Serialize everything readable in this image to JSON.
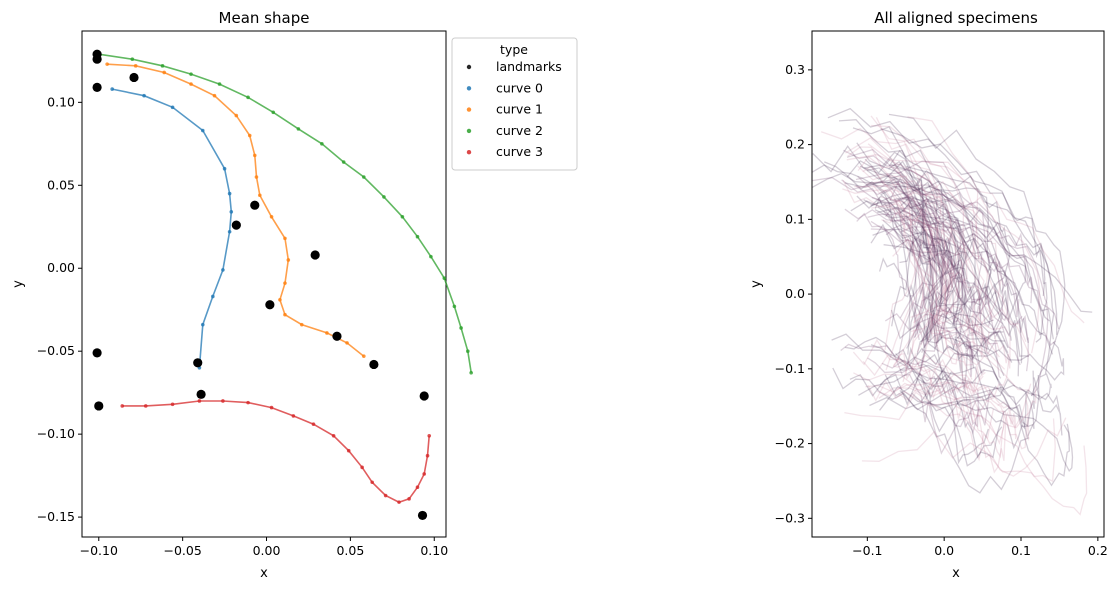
{
  "figure": {
    "left_title": "Mean shape",
    "right_title": "All aligned specimens"
  },
  "chart_data": [
    {
      "type": "line",
      "title": "Mean shape",
      "xlabel": "x",
      "ylabel": "y",
      "xlim": [
        -0.11,
        0.107
      ],
      "ylim": [
        -0.162,
        0.143
      ],
      "xticks": [
        -0.1,
        -0.05,
        0.0,
        0.05,
        0.1
      ],
      "xtick_labels": [
        "−0.10",
        "−0.05",
        "0.00",
        "0.05",
        "0.10"
      ],
      "yticks": [
        -0.15,
        -0.1,
        -0.05,
        0.0,
        0.05,
        0.1
      ],
      "ytick_labels": [
        "−0.15",
        "−0.10",
        "−0.05",
        "0.00",
        "0.05",
        "0.10"
      ],
      "grid": false,
      "legend": {
        "title": "type",
        "placement": "outside upper right",
        "entries": [
          "landmarks",
          "curve 0",
          "curve 1",
          "curve 2",
          "curve 3"
        ]
      },
      "series": [
        {
          "name": "curve 0",
          "color": "#1f77b4",
          "points": [
            [
              -0.092,
              0.108
            ],
            [
              -0.073,
              0.104
            ],
            [
              -0.056,
              0.097
            ],
            [
              -0.038,
              0.083
            ],
            [
              -0.025,
              0.06
            ],
            [
              -0.022,
              0.045
            ],
            [
              -0.021,
              0.034
            ],
            [
              -0.022,
              0.022
            ],
            [
              -0.026,
              -0.001
            ],
            [
              -0.032,
              -0.017
            ],
            [
              -0.038,
              -0.034
            ],
            [
              -0.04,
              -0.06
            ]
          ]
        },
        {
          "name": "curve 1",
          "color": "#ff7f0e",
          "points": [
            [
              -0.095,
              0.123
            ],
            [
              -0.078,
              0.122
            ],
            [
              -0.061,
              0.118
            ],
            [
              -0.045,
              0.111
            ],
            [
              -0.031,
              0.104
            ],
            [
              -0.018,
              0.092
            ],
            [
              -0.01,
              0.08
            ],
            [
              -0.007,
              0.068
            ],
            [
              -0.006,
              0.055
            ],
            [
              -0.004,
              0.044
            ],
            [
              0.003,
              0.031
            ],
            [
              0.011,
              0.018
            ],
            [
              0.013,
              0.005
            ],
            [
              0.011,
              -0.009
            ],
            [
              0.008,
              -0.019
            ],
            [
              0.011,
              -0.028
            ],
            [
              0.021,
              -0.034
            ],
            [
              0.036,
              -0.039
            ],
            [
              0.048,
              -0.045
            ],
            [
              0.058,
              -0.053
            ]
          ]
        },
        {
          "name": "curve 2",
          "color": "#2ca02c",
          "points": [
            [
              -0.1,
              0.129
            ],
            [
              -0.08,
              0.126
            ],
            [
              -0.062,
              0.122
            ],
            [
              -0.045,
              0.117
            ],
            [
              -0.028,
              0.111
            ],
            [
              -0.011,
              0.103
            ],
            [
              0.004,
              0.094
            ],
            [
              0.019,
              0.084
            ],
            [
              0.033,
              0.075
            ],
            [
              0.046,
              0.064
            ],
            [
              0.058,
              0.055
            ],
            [
              0.07,
              0.043
            ],
            [
              0.081,
              0.031
            ],
            [
              0.09,
              0.019
            ],
            [
              0.098,
              0.007
            ],
            [
              0.106,
              -0.006
            ],
            [
              0.112,
              -0.023
            ],
            [
              0.116,
              -0.036
            ],
            [
              0.12,
              -0.05
            ],
            [
              0.122,
              -0.063
            ]
          ]
        },
        {
          "name": "curve 3",
          "color": "#d62728",
          "points": [
            [
              -0.086,
              -0.083
            ],
            [
              -0.072,
              -0.083
            ],
            [
              -0.056,
              -0.082
            ],
            [
              -0.04,
              -0.08
            ],
            [
              -0.026,
              -0.08
            ],
            [
              -0.011,
              -0.081
            ],
            [
              0.003,
              -0.084
            ],
            [
              0.016,
              -0.089
            ],
            [
              0.028,
              -0.094
            ],
            [
              0.04,
              -0.101
            ],
            [
              0.049,
              -0.11
            ],
            [
              0.057,
              -0.12
            ],
            [
              0.063,
              -0.129
            ],
            [
              0.071,
              -0.137
            ],
            [
              0.079,
              -0.141
            ],
            [
              0.085,
              -0.139
            ],
            [
              0.09,
              -0.132
            ],
            [
              0.094,
              -0.124
            ],
            [
              0.096,
              -0.113
            ],
            [
              0.097,
              -0.101
            ]
          ]
        },
        {
          "name": "landmarks",
          "color": "#000000",
          "kind": "scatter",
          "points": [
            [
              -0.101,
              0.129
            ],
            [
              -0.101,
              0.126
            ],
            [
              -0.101,
              0.109
            ],
            [
              -0.079,
              0.115
            ],
            [
              -0.007,
              0.038
            ],
            [
              -0.018,
              0.026
            ],
            [
              0.029,
              0.008
            ],
            [
              0.002,
              -0.022
            ],
            [
              0.042,
              -0.041
            ],
            [
              0.064,
              -0.058
            ],
            [
              -0.101,
              -0.051
            ],
            [
              -0.041,
              -0.057
            ],
            [
              -0.1,
              -0.083
            ],
            [
              -0.039,
              -0.076
            ],
            [
              0.094,
              -0.077
            ],
            [
              0.093,
              -0.149
            ]
          ]
        }
      ]
    },
    {
      "type": "line",
      "title": "All aligned specimens",
      "xlabel": "x",
      "ylabel": "y",
      "xlim": [
        -0.172,
        0.208
      ],
      "ylim": [
        -0.325,
        0.352
      ],
      "xticks": [
        -0.1,
        0.0,
        0.1,
        0.2
      ],
      "xtick_labels": [
        "−0.1",
        "0.0",
        "0.1",
        "0.2"
      ],
      "yticks": [
        -0.3,
        -0.2,
        -0.1,
        0.0,
        0.1,
        0.2,
        0.3
      ],
      "ytick_labels": [
        "−0.3",
        "−0.2",
        "−0.1",
        "0.0",
        "0.1",
        "0.2",
        "0.3"
      ],
      "grid": false,
      "colors": {
        "dense": "#3b1f4a",
        "mid": "#6e3a6a",
        "light": "#c9869e"
      },
      "note": "many overlaid specimen curves; drawn as perturbed copies of the mean shape"
    }
  ]
}
